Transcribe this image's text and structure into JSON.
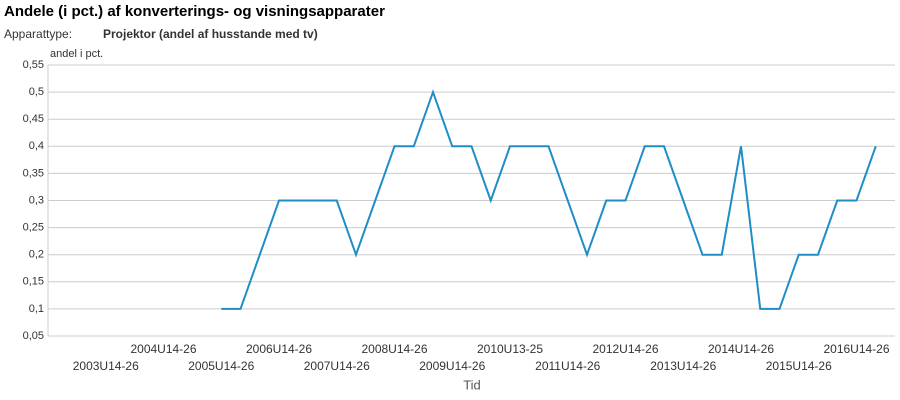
{
  "chart_data": {
    "type": "line",
    "title": "Andele (i pct.) af konverterings- og visningsapparater",
    "filter_label": "Apparattype:",
    "filter_value": "Projektor (andel af husstande med tv)",
    "y_axis_label": "andel i pct.",
    "x_axis_label": "Tid",
    "categories": [
      null,
      null,
      null,
      "2003U14-26",
      null,
      null,
      "2004U14-26",
      null,
      null,
      "2005U14-26",
      null,
      null,
      "2006U14-26",
      null,
      null,
      "2007U14-26",
      null,
      null,
      "2008U14-26",
      null,
      null,
      "2009U14-26",
      null,
      null,
      "2010U13-25",
      null,
      null,
      "2011U14-26",
      null,
      null,
      "2012U14-26",
      null,
      null,
      "2013U14-26",
      null,
      null,
      "2014U14-26",
      null,
      null,
      "2015U14-26",
      null,
      null,
      "2016U14-26",
      null,
      null
    ],
    "values": [
      null,
      null,
      null,
      null,
      null,
      null,
      null,
      null,
      null,
      0.1,
      0.1,
      0.2,
      0.3,
      0.3,
      0.3,
      0.3,
      0.2,
      0.3,
      0.4,
      0.4,
      0.5,
      0.4,
      0.4,
      0.3,
      0.4,
      0.4,
      0.4,
      0.3,
      0.2,
      0.3,
      0.3,
      0.4,
      0.4,
      0.3,
      0.2,
      0.2,
      0.4,
      0.1,
      0.1,
      0.2,
      0.2,
      0.3,
      0.3,
      0.4,
      null
    ],
    "color": "#1f8dc6",
    "ylim": [
      0.05,
      0.55
    ],
    "yticks": [
      {
        "value": 0.05,
        "label": "0,05"
      },
      {
        "value": 0.1,
        "label": "0,1"
      },
      {
        "value": 0.15,
        "label": "0,15"
      },
      {
        "value": 0.2,
        "label": "0,2"
      },
      {
        "value": 0.25,
        "label": "0,25"
      },
      {
        "value": 0.3,
        "label": "0,3"
      },
      {
        "value": 0.35,
        "label": "0,35"
      },
      {
        "value": 0.4,
        "label": "0,4"
      },
      {
        "value": 0.45,
        "label": "0,45"
      },
      {
        "value": 0.5,
        "label": "0,5"
      },
      {
        "value": 0.55,
        "label": "0,55"
      }
    ],
    "grid": true
  }
}
